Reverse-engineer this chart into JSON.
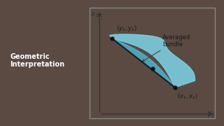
{
  "bg_color": "#5a4a42",
  "panel_left_color": "#7a8a9a",
  "panel_left_text": "Geometric\nInterpretation",
  "panel_left_text_color": "#ffffff",
  "chart_bg_color": "#c8ecf4",
  "chart_border_color": "#888888",
  "axis_color": "#333333",
  "point1": [
    0.18,
    0.72
  ],
  "point2": [
    0.5,
    0.45
  ],
  "point3": [
    0.68,
    0.28
  ],
  "label_y1y2": "(y₁, y₂)",
  "label_x1x2": "(x₁, x₂)",
  "label_averaged": "Averaged\nbundle",
  "line_color": "#1a1a1a",
  "dot_color": "#111111",
  "fill_color_outer": "#7dd4e8",
  "fill_color_inner": "#4bbfe0",
  "arrow_color": "#444444",
  "title_fontsize": 7,
  "axis_label_fontsize": 7,
  "annotation_fontsize": 6
}
